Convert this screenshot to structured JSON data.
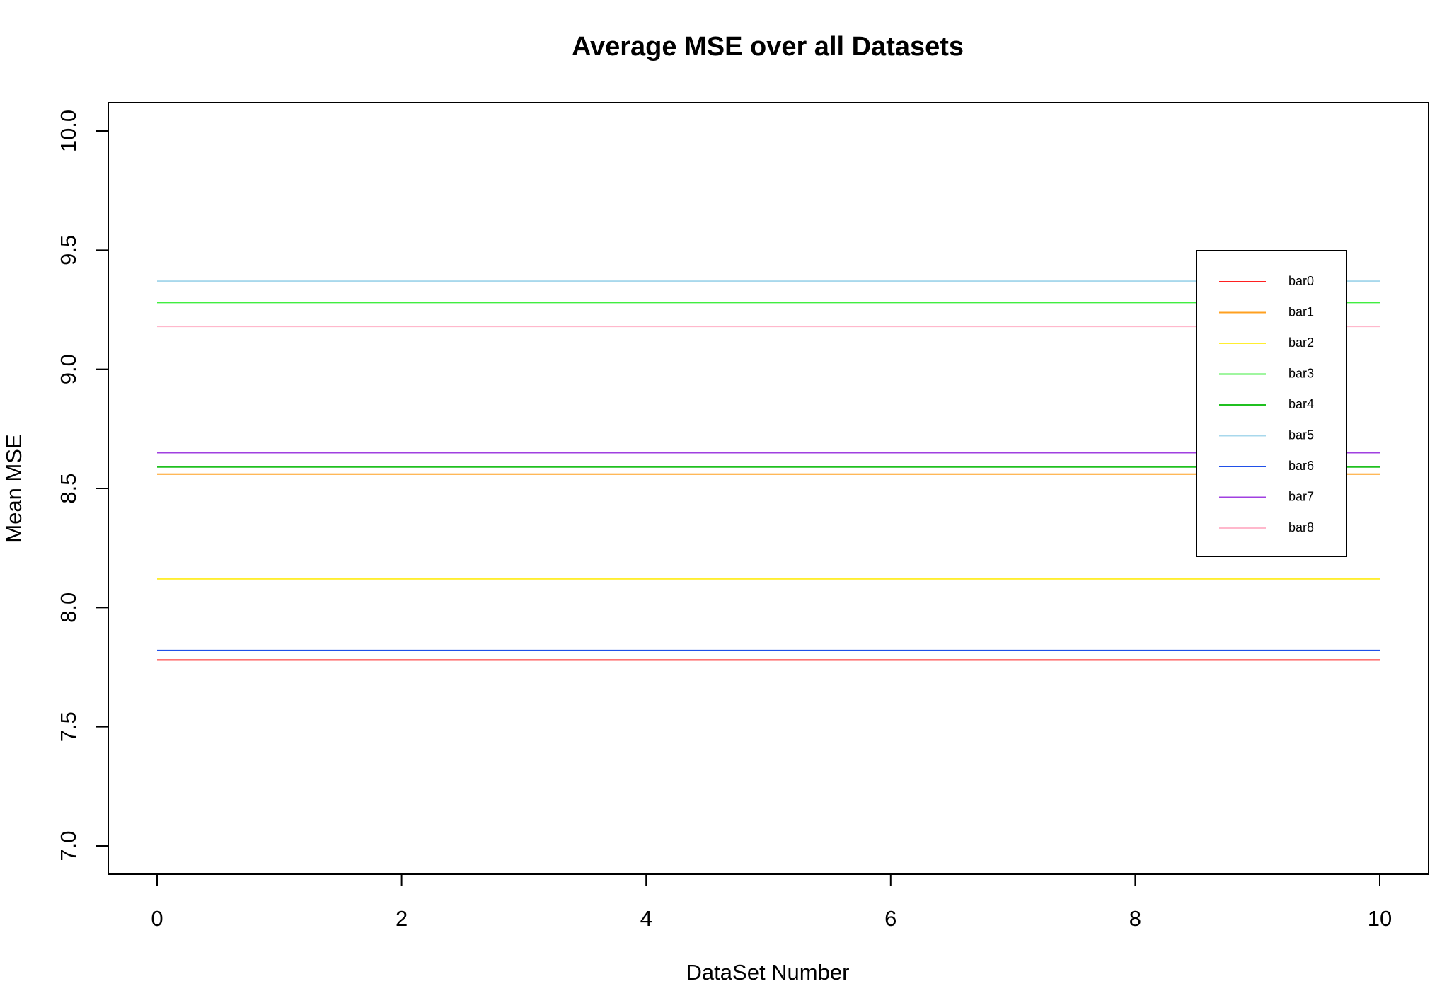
{
  "chart_data": {
    "type": "line",
    "title": "Average MSE over all Datasets",
    "xlabel": "DataSet Number",
    "ylabel": "Mean MSE",
    "xlim": [
      0,
      10
    ],
    "ylim": [
      7.0,
      10.0
    ],
    "x_ticks": [
      0,
      2,
      4,
      6,
      8,
      10
    ],
    "x_tick_labels": [
      "0",
      "2",
      "4",
      "6",
      "8",
      "10"
    ],
    "y_ticks": [
      7.0,
      7.5,
      8.0,
      8.5,
      9.0,
      9.5,
      10.0
    ],
    "y_tick_labels": [
      "7.0",
      "7.5",
      "8.0",
      "8.5",
      "9.0",
      "9.5",
      "10.0"
    ],
    "grid": false,
    "legend_position": "top-right",
    "x": [
      0,
      10
    ],
    "series": [
      {
        "name": "bar0",
        "color": "#ff2020",
        "values": [
          7.78,
          7.78
        ]
      },
      {
        "name": "bar1",
        "color": "#ffa020",
        "values": [
          8.56,
          8.56
        ]
      },
      {
        "name": "bar2",
        "color": "#ffee30",
        "values": [
          8.12,
          8.12
        ]
      },
      {
        "name": "bar3",
        "color": "#40ee40",
        "values": [
          9.28,
          9.28
        ]
      },
      {
        "name": "bar4",
        "color": "#20c020",
        "values": [
          8.59,
          8.59
        ]
      },
      {
        "name": "bar5",
        "color": "#a8d8ec",
        "values": [
          9.37,
          9.37
        ]
      },
      {
        "name": "bar6",
        "color": "#2050e8",
        "values": [
          7.82,
          7.82
        ]
      },
      {
        "name": "bar7",
        "color": "#a040e0",
        "values": [
          8.65,
          8.65
        ]
      },
      {
        "name": "bar8",
        "color": "#ffb8cc",
        "values": [
          9.18,
          9.18
        ]
      }
    ]
  }
}
